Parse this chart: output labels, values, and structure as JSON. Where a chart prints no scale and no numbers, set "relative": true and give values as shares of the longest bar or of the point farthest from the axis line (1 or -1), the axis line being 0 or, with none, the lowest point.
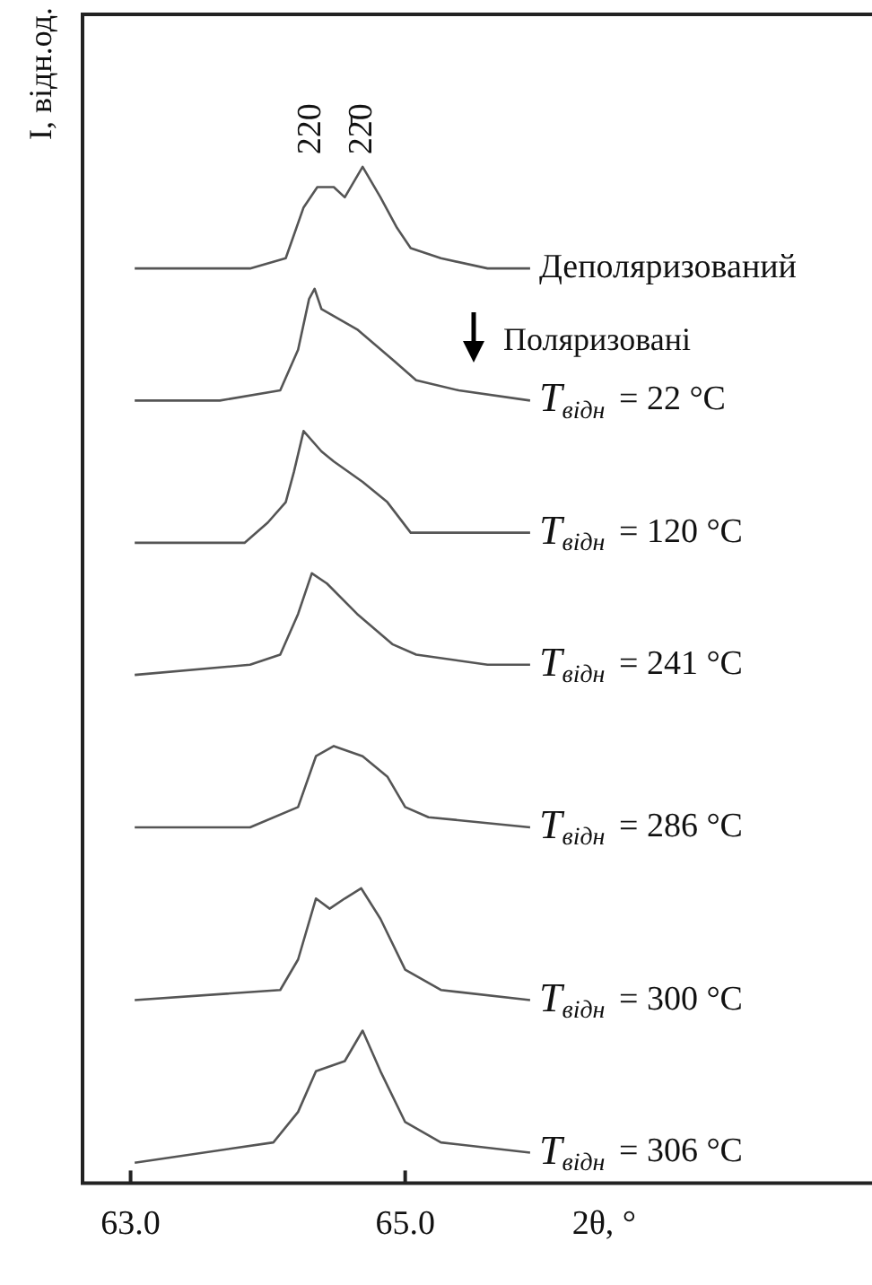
{
  "chart_data": {
    "type": "line",
    "relative": true,
    "xlabel": "2θ, °",
    "ylabel": "I, відн.од.",
    "xlim": [
      62.65,
      68.4
    ],
    "xticks": [
      {
        "value": 63,
        "label": "63.0"
      },
      {
        "value": 65,
        "label": "65.0"
      }
    ],
    "grid": false,
    "legend": false,
    "marker": "none",
    "line_style": "solid",
    "annotations": [
      "220",
      "22̄0",
      "Поляризовані"
    ],
    "series": [
      {
        "name": "Деполяризований",
        "color": "#555555",
        "x": [
          63.03,
          63.44,
          63.87,
          64.13,
          64.26,
          64.36,
          64.48,
          64.56,
          64.69,
          64.82,
          64.94,
          65.04,
          65.26,
          65.6,
          65.91
        ],
        "values": [
          0.9,
          0.9,
          0.9,
          0.91,
          0.96,
          0.98,
          0.98,
          0.97,
          1.0,
          0.97,
          0.94,
          0.92,
          0.91,
          0.9,
          0.9
        ]
      },
      {
        "name": "T$_{відн}$ = 22 °C",
        "color": "#555555",
        "x": [
          63.03,
          63.65,
          64.09,
          64.22,
          64.3,
          64.34,
          64.39,
          64.65,
          64.91,
          65.08,
          65.39,
          65.91
        ],
        "values": [
          0.77,
          0.77,
          0.78,
          0.82,
          0.87,
          0.88,
          0.86,
          0.84,
          0.81,
          0.79,
          0.78,
          0.77
        ]
      },
      {
        "name": "T$_{відн}$ = 120 °C",
        "color": "#555555",
        "x": [
          63.03,
          63.83,
          64.0,
          64.13,
          64.19,
          64.26,
          64.39,
          64.48,
          64.69,
          64.87,
          65.04,
          65.39,
          65.91
        ],
        "values": [
          0.63,
          0.63,
          0.65,
          0.67,
          0.7,
          0.74,
          0.72,
          0.71,
          0.69,
          0.67,
          0.64,
          0.64,
          0.64
        ]
      },
      {
        "name": "T$_{відн}$ = 241 °C",
        "color": "#555555",
        "x": [
          63.03,
          63.87,
          64.09,
          64.22,
          64.32,
          64.43,
          64.65,
          64.91,
          65.08,
          65.6,
          65.91
        ],
        "values": [
          0.5,
          0.51,
          0.52,
          0.56,
          0.6,
          0.59,
          0.56,
          0.53,
          0.52,
          0.51,
          0.51
        ]
      },
      {
        "name": "T$_{відн}$ = 286 °C",
        "color": "#555555",
        "x": [
          63.03,
          63.87,
          64.22,
          64.35,
          64.48,
          64.69,
          64.87,
          65.0,
          65.17,
          65.91
        ],
        "values": [
          0.35,
          0.35,
          0.37,
          0.42,
          0.43,
          0.42,
          0.4,
          0.37,
          0.36,
          0.35
        ]
      },
      {
        "name": "T$_{відн}$ = 300 °C",
        "color": "#555555",
        "x": [
          63.03,
          64.09,
          64.22,
          64.35,
          64.45,
          64.56,
          64.68,
          64.82,
          65.0,
          65.26,
          65.91
        ],
        "values": [
          0.18,
          0.19,
          0.22,
          0.28,
          0.27,
          0.28,
          0.29,
          0.26,
          0.21,
          0.19,
          0.18
        ]
      },
      {
        "name": "T$_{відн}$ = 306 °C",
        "color": "#555555",
        "x": [
          63.03,
          64.04,
          64.22,
          64.35,
          64.56,
          64.69,
          64.82,
          65.0,
          65.26,
          65.91
        ],
        "values": [
          0.02,
          0.04,
          0.07,
          0.11,
          0.12,
          0.15,
          0.11,
          0.06,
          0.04,
          0.03
        ]
      }
    ]
  }
}
